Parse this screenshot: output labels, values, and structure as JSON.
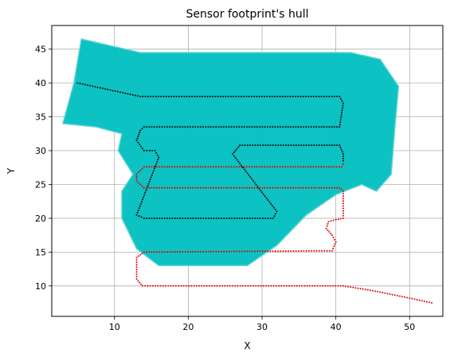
{
  "chart_data": {
    "type": "scatter",
    "title": "Sensor footprint's hull",
    "xlabel": "X",
    "ylabel": "Y",
    "xlim": [
      1.5,
      54.5
    ],
    "ylim": [
      5.5,
      48.5
    ],
    "xticks": [
      10,
      20,
      30,
      40,
      50
    ],
    "yticks": [
      10,
      15,
      20,
      25,
      30,
      35,
      40,
      45
    ],
    "grid": true,
    "colors": {
      "hull": "#00bfbf",
      "hull_light": "#5fd2d2",
      "path_covered": "#000000",
      "path_planned": "#e00000",
      "grid": "#b0b0b0"
    },
    "hull_polygon": [
      [
        5.5,
        46.5
      ],
      [
        13.5,
        44.5
      ],
      [
        42.0,
        44.5
      ],
      [
        46.0,
        43.5
      ],
      [
        48.5,
        39.5
      ],
      [
        48.0,
        33.5
      ],
      [
        47.5,
        26.5
      ],
      [
        45.5,
        24.0
      ],
      [
        43.5,
        25.0
      ],
      [
        40.0,
        23.5
      ],
      [
        36.0,
        20.5
      ],
      [
        32.0,
        16.0
      ],
      [
        28.0,
        13.0
      ],
      [
        16.0,
        13.0
      ],
      [
        13.0,
        15.5
      ],
      [
        11.0,
        20.0
      ],
      [
        11.0,
        24.0
      ],
      [
        12.5,
        26.5
      ],
      [
        10.5,
        30.0
      ],
      [
        11.0,
        32.5
      ],
      [
        7.5,
        33.5
      ],
      [
        3.0,
        34.0
      ],
      [
        4.5,
        40.0
      ]
    ],
    "paths": [
      {
        "color": "path_covered",
        "points": [
          [
            5.0,
            40.0
          ],
          [
            13.5,
            38.0
          ],
          [
            40.5,
            38.0
          ],
          [
            41.0,
            37.0
          ],
          [
            40.5,
            33.5
          ],
          [
            14.0,
            33.5
          ],
          [
            13.5,
            33.0
          ],
          [
            13.0,
            31.5
          ],
          [
            14.0,
            30.0
          ],
          [
            15.5,
            30.0
          ],
          [
            16.0,
            29.0
          ],
          [
            13.0,
            20.5
          ],
          [
            14.0,
            20.0
          ],
          [
            31.5,
            20.0
          ],
          [
            32.0,
            21.0
          ],
          [
            26.0,
            29.5
          ],
          [
            27.0,
            30.8
          ],
          [
            40.5,
            30.8
          ],
          [
            41.0,
            29.5
          ],
          [
            41.0,
            28.5
          ]
        ]
      },
      {
        "color": "path_planned",
        "points": [
          [
            41.0,
            28.0
          ],
          [
            40.8,
            27.6
          ],
          [
            14.0,
            27.6
          ],
          [
            13.0,
            26.5
          ],
          [
            13.0,
            25.5
          ],
          [
            14.0,
            24.5
          ],
          [
            40.5,
            24.5
          ],
          [
            41.0,
            24.0
          ],
          [
            41.0,
            20.0
          ],
          [
            40.0,
            19.8
          ],
          [
            39.0,
            19.5
          ],
          [
            38.7,
            18.5
          ],
          [
            39.5,
            17.5
          ],
          [
            40.0,
            16.5
          ],
          [
            39.5,
            15.2
          ],
          [
            14.0,
            15.0
          ],
          [
            13.0,
            14.2
          ],
          [
            13.0,
            11.0
          ],
          [
            13.8,
            10.0
          ],
          [
            41.0,
            10.0
          ],
          [
            45.0,
            9.3
          ],
          [
            50.0,
            8.2
          ],
          [
            53.0,
            7.5
          ]
        ]
      }
    ]
  }
}
